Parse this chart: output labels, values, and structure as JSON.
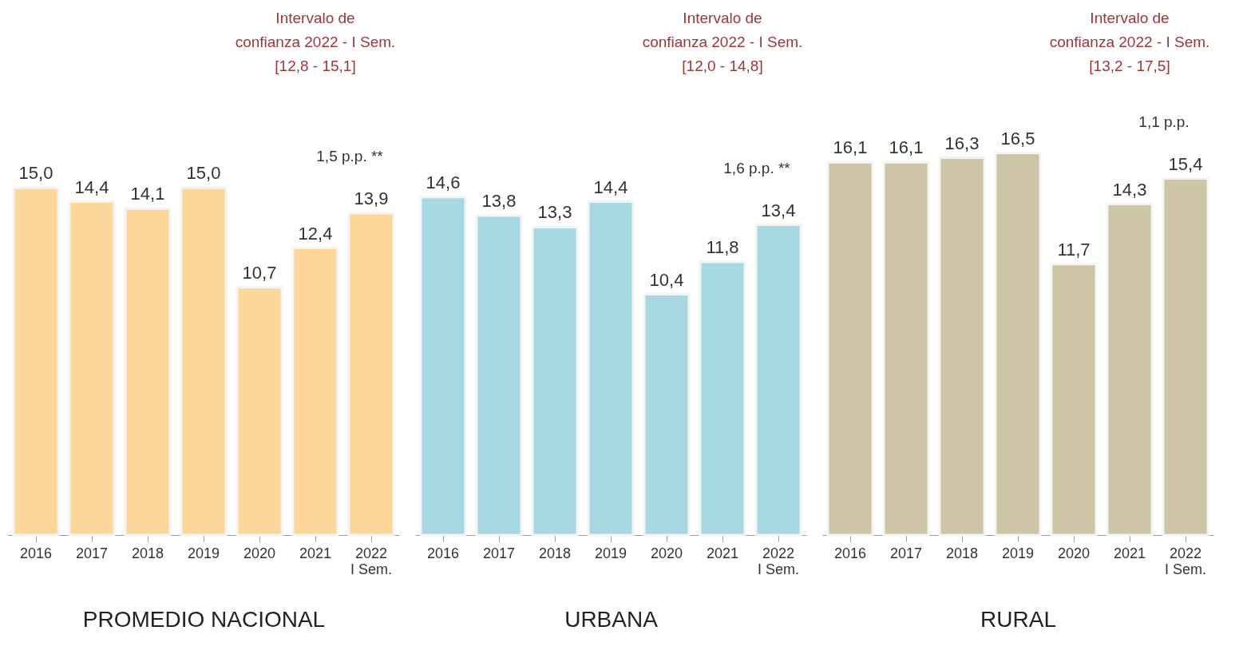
{
  "chart_data": [
    {
      "type": "bar",
      "xlabel": "PROMEDIO NACIONAL",
      "categories": [
        "2016",
        "2017",
        "2018",
        "2019",
        "2020",
        "2021",
        "2022\nI Sem."
      ],
      "values": [
        15.0,
        14.4,
        14.1,
        15.0,
        10.7,
        12.4,
        13.9
      ],
      "color": "#fdd79a",
      "value_labels": [
        "15,0",
        "14,4",
        "14,1",
        "15,0",
        "10,7",
        "12,4",
        "13,9"
      ],
      "annotations": [
        "Intervalo de\nconfianza 2022 - I Sem.\n[12,8 - 15,1]",
        "1,5 p.p. **"
      ]
    },
    {
      "type": "bar",
      "xlabel": "URBANA",
      "categories": [
        "2016",
        "2017",
        "2018",
        "2019",
        "2020",
        "2021",
        "2022\nI Sem."
      ],
      "values": [
        14.6,
        13.8,
        13.3,
        14.4,
        10.4,
        11.8,
        13.4
      ],
      "color": "#a8d8e2",
      "value_labels": [
        "14,6",
        "13,8",
        "13,3",
        "14,4",
        "10,4",
        "11,8",
        "13,4"
      ],
      "annotations": [
        "Intervalo de\nconfianza 2022 - I Sem.\n[12,0 - 14,8]",
        "1,6 p.p. **"
      ]
    },
    {
      "type": "bar",
      "xlabel": "RURAL",
      "categories": [
        "2016",
        "2017",
        "2018",
        "2019",
        "2020",
        "2021",
        "2022\nI Sem."
      ],
      "values": [
        16.1,
        16.1,
        16.3,
        16.5,
        11.7,
        14.3,
        15.4
      ],
      "color": "#cdc5a5",
      "value_labels": [
        "16,1",
        "16,1",
        "16,3",
        "16,5",
        "11,7",
        "14,3",
        "15,4"
      ],
      "annotations": [
        "Intervalo de\nconfianza 2022 - I Sem.\n[13,2 - 17,5]",
        "1,1 p.p."
      ]
    }
  ]
}
